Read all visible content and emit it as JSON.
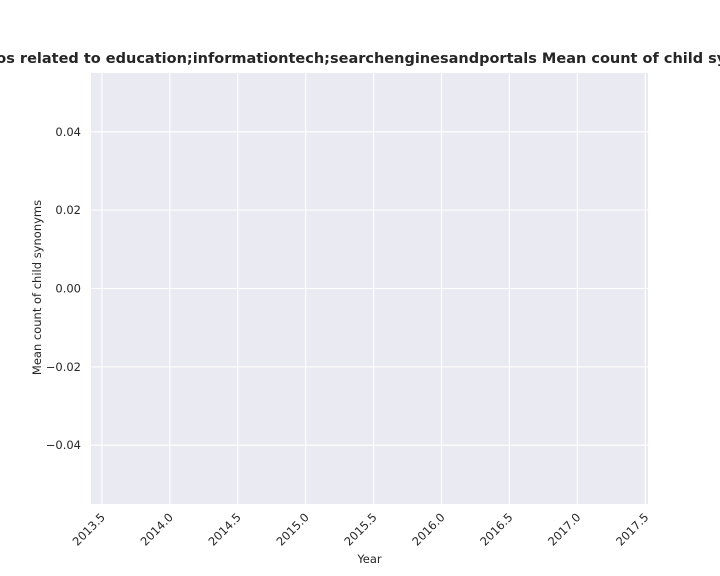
{
  "chart_data": {
    "type": "line",
    "title": "Number of repos related to education;informationtech;searchenginesandportals Mean count of child synonyms in repos",
    "xlabel": "Year",
    "ylabel": "Mean count of child synonyms",
    "xlim": [
      2013.42,
      2017.52
    ],
    "ylim": [
      -0.055,
      0.055
    ],
    "xticks": [
      2013.5,
      2014.0,
      2014.5,
      2015.0,
      2015.5,
      2016.0,
      2016.5,
      2017.0,
      2017.5
    ],
    "xtick_labels": [
      "2013.5",
      "2014.0",
      "2014.5",
      "2015.0",
      "2015.5",
      "2016.0",
      "2016.5",
      "2017.0",
      "2017.5"
    ],
    "yticks": [
      0.04,
      0.02,
      0.0,
      -0.02,
      -0.04
    ],
    "ytick_labels": [
      "0.04",
      "0.02",
      "0.00",
      "−0.02",
      "−0.04"
    ],
    "series": [],
    "grid": true,
    "colors": {
      "plot_background": "#eaeaf2",
      "grid": "#ffffff",
      "text": "#262626"
    }
  }
}
